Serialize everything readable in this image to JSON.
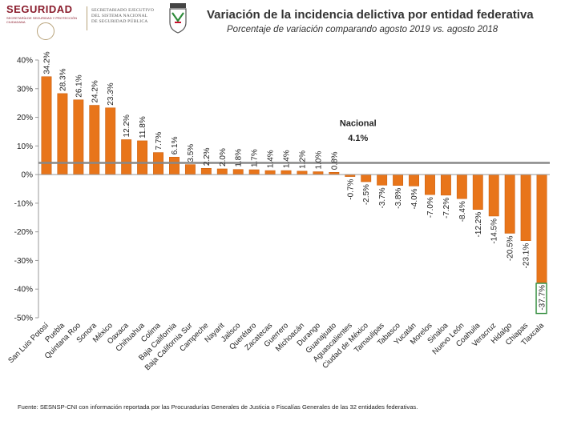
{
  "header": {
    "brand": "SEGURIDAD",
    "brand_sub": "SECRETARÍA DE SEGURIDAD Y PROTECCIÓN CIUDADANA",
    "agency_line1": "SECRETARIADO EJECUTIVO",
    "agency_line2": "DEL SISTEMA NACIONAL",
    "agency_line3": "DE SEGURIDAD PÚBLICA",
    "title": "Variación de la incidencia delictiva por entidad federativa",
    "subtitle": "Porcentaje de variación comparando agosto 2019 vs. agosto 2018"
  },
  "footer": {
    "source": "Fuente: SESNSP-CNI con información reportada por las Procuradurías Generales de Justicia o Fiscalías Generales de las 32 entidades federativas."
  },
  "colors": {
    "bar": "#e8751a",
    "bar_edge": "#c85a08",
    "reference_line": "#888888",
    "highlight_box": "#2e8b3a",
    "brand": "#8a1c2c"
  },
  "chart_data": {
    "type": "bar",
    "title": "Variación de la incidencia delictiva por entidad federativa",
    "subtitle": "Porcentaje de variación comparando agosto 2019 vs. agosto 2018",
    "xlabel": "",
    "ylabel": "",
    "ylim": [
      -50,
      40
    ],
    "yticks": [
      40,
      30,
      20,
      10,
      0,
      -10,
      -20,
      -30,
      -40,
      -50
    ],
    "ytick_labels": [
      "40%",
      "30%",
      "20%",
      "10%",
      "0%",
      "-10%",
      "-20%",
      "-30%",
      "-40%",
      "-50%"
    ],
    "categories": [
      "San Luis Potosí",
      "Puebla",
      "Quintana Roo",
      "Sonora",
      "México",
      "Oaxaca",
      "Chihuahua",
      "Colima",
      "Baja California",
      "Baja California Sur",
      "Campeche",
      "Nayarit",
      "Jalisco",
      "Querétaro",
      "Zacatecas",
      "Guerrero",
      "Michoacán",
      "Durango",
      "Guanajuato",
      "Aguascalientes",
      "Ciudad de México",
      "Tamaulipas",
      "Tabasco",
      "Yucatán",
      "Morelos",
      "Sinaloa",
      "Nuevo León",
      "Coahuila",
      "Veracruz",
      "Hidalgo",
      "Chiapas",
      "Tlaxcala"
    ],
    "values": [
      34.2,
      28.3,
      26.1,
      24.2,
      23.3,
      12.2,
      11.8,
      7.7,
      6.1,
      3.5,
      2.2,
      2.0,
      1.8,
      1.7,
      1.4,
      1.4,
      1.2,
      1.0,
      0.8,
      -0.7,
      -2.5,
      -3.7,
      -3.8,
      -4.0,
      -7.0,
      -7.2,
      -8.4,
      -12.2,
      -14.5,
      -20.5,
      -23.1,
      -37.7
    ],
    "value_labels": [
      "34.2%",
      "28.3%",
      "26.1%",
      "24.2%",
      "23.3%",
      "12.2%",
      "11.8%",
      "7.7%",
      "6.1%",
      "3.5%",
      "2.2%",
      "2.0%",
      "1.8%",
      "1.7%",
      "1.4%",
      "1.4%",
      "1.2%",
      "1.0%",
      "0.8%",
      "-0.7%",
      "-2.5%",
      "-3.7%",
      "-3.8%",
      "-4.0%",
      "-7.0%",
      "-7.2%",
      "-8.4%",
      "-12.2%",
      "-14.5%",
      "-20.5%",
      "-23.1%",
      "-37.7%"
    ],
    "highlighted_index": 31,
    "reference_line": {
      "label": "Nacional",
      "value": 4.1,
      "value_label": "4.1%"
    }
  }
}
